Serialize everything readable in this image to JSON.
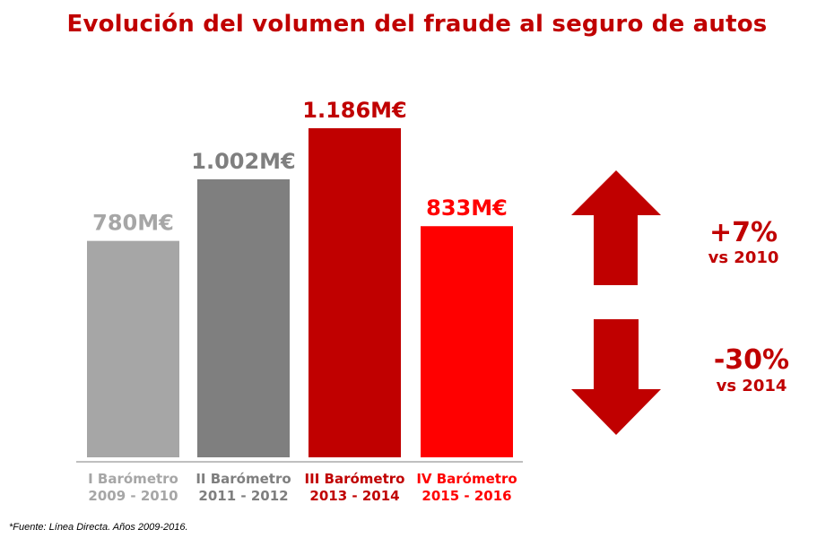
{
  "chart_data": {
    "type": "bar",
    "title": "Evolución del volumen del fraude al seguro de autos",
    "categories": [
      [
        "I Barómetro",
        "2009 - 2010"
      ],
      [
        "II Barómetro",
        "2011 - 2012"
      ],
      [
        "III Barómetro",
        "2013 - 2014"
      ],
      [
        "IV Barómetro",
        "2015 - 2016"
      ]
    ],
    "values": [
      780,
      1002,
      1186,
      833
    ],
    "unit": "M€",
    "data_labels": [
      "780M€",
      "1.002M€",
      "1.186M€",
      "833M€"
    ],
    "bar_colors": [
      "#a6a6a6",
      "#7f7f7f",
      "#c00000",
      "#ff0000"
    ],
    "label_colors": [
      "#a6a6a6",
      "#7f7f7f",
      "#c00000",
      "#ff0000"
    ],
    "ylim": [
      0,
      1186
    ],
    "grid": false,
    "legend": "none",
    "xlabel": "",
    "ylabel": ""
  },
  "title_color": "#c00000",
  "changes": [
    {
      "value": "+7%",
      "reference": "vs 2010",
      "direction": "up",
      "icon": "arrow-up-icon"
    },
    {
      "value": "-30%",
      "reference": "vs 2014",
      "direction": "down",
      "icon": "arrow-down-icon"
    }
  ],
  "accent_color": "#c00000",
  "source": "*Fuente: Línea Directa. Años 2009-2016."
}
